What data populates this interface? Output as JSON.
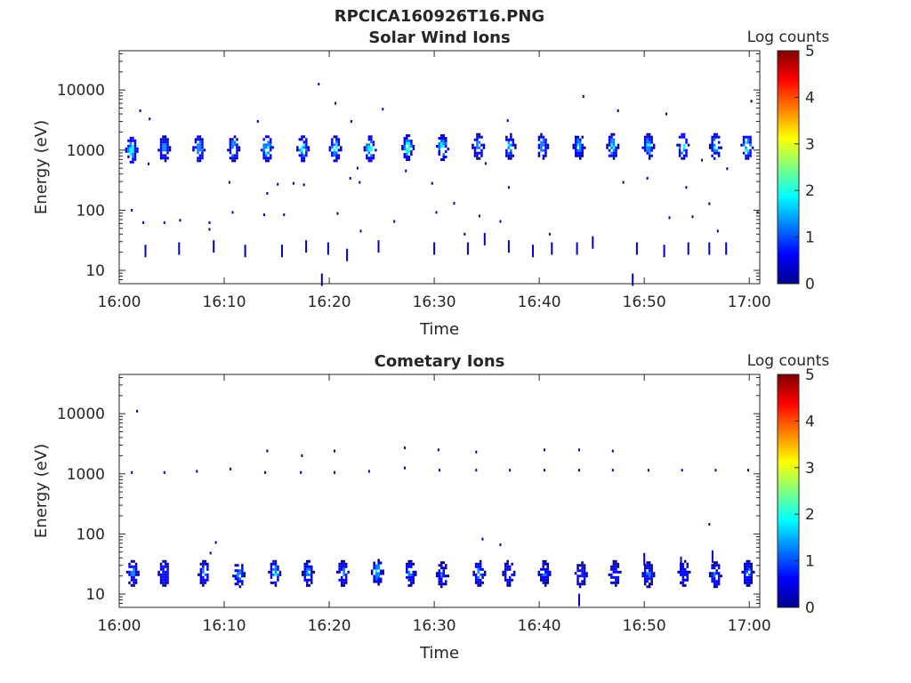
{
  "figure": {
    "filename_title": "RPCICA160926T16.PNG"
  },
  "colormap": [
    "#00008f",
    "#0000ff",
    "#0080ff",
    "#00ffff",
    "#80ff80",
    "#ffff00",
    "#ff8000",
    "#ff0000",
    "#800000"
  ],
  "chart_data": [
    {
      "type": "heatmap",
      "title": "Solar Wind Ions",
      "xlabel": "Time",
      "ylabel": "Energy (eV)",
      "colorbar_label": "Log counts",
      "colorbar_range": [
        0,
        5
      ],
      "colorbar_ticks": [
        "0",
        "1",
        "2",
        "3",
        "4",
        "5"
      ],
      "y_scale": "log",
      "ylim": [
        6,
        45000
      ],
      "y_ticks": [
        {
          "value": 10,
          "label": "10"
        },
        {
          "value": 100,
          "label": "100"
        },
        {
          "value": 1000,
          "label": "1000"
        },
        {
          "value": 10000,
          "label": "10000"
        }
      ],
      "xlim_minutes": [
        0,
        61
      ],
      "x_ticks": [
        {
          "minute": 0,
          "label": "16:00"
        },
        {
          "minute": 10,
          "label": "16:10"
        },
        {
          "minute": 20,
          "label": "16:20"
        },
        {
          "minute": 30,
          "label": "16:30"
        },
        {
          "minute": 40,
          "label": "16:40"
        },
        {
          "minute": 50,
          "label": "16:50"
        },
        {
          "minute": 60,
          "label": "17:00"
        }
      ],
      "bursts": [
        {
          "t": 1.2,
          "e": 1000,
          "peak": 2.7
        },
        {
          "t": 4.3,
          "e": 1050,
          "peak": 2.0
        },
        {
          "t": 7.6,
          "e": 1050,
          "peak": 2.3
        },
        {
          "t": 10.9,
          "e": 1050,
          "peak": 2.2
        },
        {
          "t": 14.1,
          "e": 1050,
          "peak": 2.8
        },
        {
          "t": 17.5,
          "e": 1050,
          "peak": 2.6
        },
        {
          "t": 20.6,
          "e": 1050,
          "peak": 2.6
        },
        {
          "t": 23.9,
          "e": 1050,
          "peak": 2.8
        },
        {
          "t": 27.5,
          "e": 1100,
          "peak": 2.9
        },
        {
          "t": 30.8,
          "e": 1100,
          "peak": 2.8
        },
        {
          "t": 34.2,
          "e": 1150,
          "peak": 2.0
        },
        {
          "t": 37.2,
          "e": 1150,
          "peak": 2.1
        },
        {
          "t": 40.3,
          "e": 1150,
          "peak": 2.1
        },
        {
          "t": 43.8,
          "e": 1150,
          "peak": 2.1
        },
        {
          "t": 47.0,
          "e": 1150,
          "peak": 2.3
        },
        {
          "t": 50.4,
          "e": 1150,
          "peak": 2.2
        },
        {
          "t": 53.7,
          "e": 1150,
          "peak": 2.3
        },
        {
          "t": 56.8,
          "e": 1150,
          "peak": 2.4
        },
        {
          "t": 59.8,
          "e": 1150,
          "peak": 2.7
        }
      ],
      "low_energy_marks": [
        {
          "t": 2.5,
          "e": 21
        },
        {
          "t": 5.7,
          "e": 23
        },
        {
          "t": 9.0,
          "e": 25
        },
        {
          "t": 12.0,
          "e": 21
        },
        {
          "t": 15.5,
          "e": 21
        },
        {
          "t": 17.8,
          "e": 25
        },
        {
          "t": 19.9,
          "e": 23
        },
        {
          "t": 21.7,
          "e": 18
        },
        {
          "t": 24.7,
          "e": 25
        },
        {
          "t": 30.0,
          "e": 23
        },
        {
          "t": 33.2,
          "e": 23
        },
        {
          "t": 34.8,
          "e": 33
        },
        {
          "t": 37.1,
          "e": 25
        },
        {
          "t": 39.4,
          "e": 21
        },
        {
          "t": 41.2,
          "e": 23
        },
        {
          "t": 43.6,
          "e": 23
        },
        {
          "t": 45.1,
          "e": 29
        },
        {
          "t": 49.3,
          "e": 23
        },
        {
          "t": 51.9,
          "e": 21
        },
        {
          "t": 54.2,
          "e": 23
        },
        {
          "t": 56.2,
          "e": 23
        },
        {
          "t": 57.8,
          "e": 23
        },
        {
          "t": 48.9,
          "e": 7
        },
        {
          "t": 19.3,
          "e": 7
        }
      ],
      "scatter_points": [
        {
          "t": 1.2,
          "e": 100
        },
        {
          "t": 2.3,
          "e": 62
        },
        {
          "t": 4.3,
          "e": 62
        },
        {
          "t": 5.8,
          "e": 68
        },
        {
          "t": 8.6,
          "e": 48
        },
        {
          "t": 8.6,
          "e": 62
        },
        {
          "t": 10.8,
          "e": 92
        },
        {
          "t": 13.8,
          "e": 84
        },
        {
          "t": 15.7,
          "e": 84
        },
        {
          "t": 17.6,
          "e": 265
        },
        {
          "t": 20.8,
          "e": 88
        },
        {
          "t": 23.0,
          "e": 45
        },
        {
          "t": 26.2,
          "e": 65
        },
        {
          "t": 30.2,
          "e": 92
        },
        {
          "t": 32.9,
          "e": 40
        },
        {
          "t": 34.3,
          "e": 80
        },
        {
          "t": 36.3,
          "e": 65
        },
        {
          "t": 41.0,
          "e": 40
        },
        {
          "t": 52.4,
          "e": 75
        },
        {
          "t": 54.6,
          "e": 78
        },
        {
          "t": 56.2,
          "e": 128
        },
        {
          "t": 57.0,
          "e": 45
        },
        {
          "t": 60.8,
          "e": 92
        },
        {
          "t": 2.0,
          "e": 4500
        },
        {
          "t": 2.9,
          "e": 3300
        },
        {
          "t": 19.0,
          "e": 12500
        },
        {
          "t": 20.6,
          "e": 6000
        },
        {
          "t": 25.1,
          "e": 4800
        },
        {
          "t": 44.2,
          "e": 7800
        },
        {
          "t": 47.5,
          "e": 4500
        },
        {
          "t": 52.1,
          "e": 4000
        },
        {
          "t": 60.2,
          "e": 6500
        },
        {
          "t": 13.2,
          "e": 3000
        },
        {
          "t": 22.1,
          "e": 3000
        },
        {
          "t": 37.0,
          "e": 3100
        },
        {
          "t": 2.8,
          "e": 590
        },
        {
          "t": 10.5,
          "e": 290
        },
        {
          "t": 14.1,
          "e": 190
        },
        {
          "t": 15.1,
          "e": 270
        },
        {
          "t": 16.6,
          "e": 280
        },
        {
          "t": 22.0,
          "e": 340
        },
        {
          "t": 22.9,
          "e": 290
        },
        {
          "t": 27.3,
          "e": 450
        },
        {
          "t": 29.8,
          "e": 280
        },
        {
          "t": 37.1,
          "e": 240
        },
        {
          "t": 48.0,
          "e": 290
        },
        {
          "t": 50.3,
          "e": 340
        },
        {
          "t": 55.5,
          "e": 680
        },
        {
          "t": 57.9,
          "e": 490
        },
        {
          "t": 54.0,
          "e": 240
        },
        {
          "t": 31.9,
          "e": 130
        },
        {
          "t": 22.7,
          "e": 500
        },
        {
          "t": 34.9,
          "e": 600
        }
      ]
    },
    {
      "type": "heatmap",
      "title": "Cometary Ions",
      "xlabel": "Time",
      "ylabel": "Energy (eV)",
      "colorbar_label": "Log counts",
      "colorbar_range": [
        0,
        5
      ],
      "colorbar_ticks": [
        "0",
        "1",
        "2",
        "3",
        "4",
        "5"
      ],
      "y_scale": "log",
      "ylim": [
        6,
        45000
      ],
      "y_ticks": [
        {
          "value": 10,
          "label": "10"
        },
        {
          "value": 100,
          "label": "100"
        },
        {
          "value": 1000,
          "label": "1000"
        },
        {
          "value": 10000,
          "label": "10000"
        }
      ],
      "xlim_minutes": [
        0,
        61
      ],
      "x_ticks": [
        {
          "minute": 0,
          "label": "16:00"
        },
        {
          "minute": 10,
          "label": "16:10"
        },
        {
          "minute": 20,
          "label": "16:20"
        },
        {
          "minute": 30,
          "label": "16:30"
        },
        {
          "minute": 40,
          "label": "16:40"
        },
        {
          "minute": 50,
          "label": "16:50"
        },
        {
          "minute": 60,
          "label": "17:00"
        }
      ],
      "bursts": [
        {
          "t": 1.3,
          "e": 22,
          "peak": 1.7
        },
        {
          "t": 4.3,
          "e": 22,
          "peak": 1.3
        },
        {
          "t": 8.1,
          "e": 22,
          "peak": 1.8
        },
        {
          "t": 11.4,
          "e": 21,
          "peak": 1.8
        },
        {
          "t": 14.8,
          "e": 22,
          "peak": 2.3
        },
        {
          "t": 18.0,
          "e": 22,
          "peak": 2.0
        },
        {
          "t": 21.3,
          "e": 22,
          "peak": 1.8
        },
        {
          "t": 24.6,
          "e": 23,
          "peak": 2.1
        },
        {
          "t": 27.7,
          "e": 22,
          "peak": 1.6
        },
        {
          "t": 30.8,
          "e": 21,
          "peak": 1.5
        },
        {
          "t": 34.3,
          "e": 22,
          "peak": 1.6
        },
        {
          "t": 37.1,
          "e": 22,
          "peak": 1.4
        },
        {
          "t": 40.5,
          "e": 22,
          "peak": 1.3
        },
        {
          "t": 44.0,
          "e": 21,
          "peak": 1.2
        },
        {
          "t": 47.2,
          "e": 22,
          "peak": 1.3
        },
        {
          "t": 50.4,
          "e": 21,
          "peak": 1.3
        },
        {
          "t": 53.8,
          "e": 22,
          "peak": 1.5
        },
        {
          "t": 56.8,
          "e": 21,
          "peak": 1.4
        },
        {
          "t": 59.9,
          "e": 22,
          "peak": 1.5
        }
      ],
      "low_energy_marks": [
        {
          "t": 43.8,
          "e": 8
        },
        {
          "t": 50.0,
          "e": 38
        },
        {
          "t": 56.5,
          "e": 42
        },
        {
          "t": 53.5,
          "e": 33
        }
      ],
      "scatter_points": [
        {
          "t": 1.2,
          "e": 1050
        },
        {
          "t": 4.3,
          "e": 1050
        },
        {
          "t": 7.4,
          "e": 1100
        },
        {
          "t": 10.6,
          "e": 1200
        },
        {
          "t": 13.9,
          "e": 1050
        },
        {
          "t": 17.3,
          "e": 1050
        },
        {
          "t": 20.5,
          "e": 1050
        },
        {
          "t": 23.8,
          "e": 1100
        },
        {
          "t": 27.2,
          "e": 1250
        },
        {
          "t": 30.5,
          "e": 1150
        },
        {
          "t": 34.0,
          "e": 1150
        },
        {
          "t": 37.2,
          "e": 1150
        },
        {
          "t": 40.5,
          "e": 1150
        },
        {
          "t": 43.8,
          "e": 1150
        },
        {
          "t": 47.0,
          "e": 1150
        },
        {
          "t": 50.4,
          "e": 1150
        },
        {
          "t": 53.6,
          "e": 1150
        },
        {
          "t": 56.8,
          "e": 1150
        },
        {
          "t": 59.9,
          "e": 1150
        },
        {
          "t": 1.7,
          "e": 11000
        },
        {
          "t": 9.2,
          "e": 72
        },
        {
          "t": 8.7,
          "e": 48
        },
        {
          "t": 14.1,
          "e": 2400
        },
        {
          "t": 17.4,
          "e": 2000
        },
        {
          "t": 20.5,
          "e": 2400
        },
        {
          "t": 27.2,
          "e": 2700
        },
        {
          "t": 30.4,
          "e": 2500
        },
        {
          "t": 34.0,
          "e": 2300
        },
        {
          "t": 40.5,
          "e": 2500
        },
        {
          "t": 43.8,
          "e": 2500
        },
        {
          "t": 47.0,
          "e": 2400
        },
        {
          "t": 34.6,
          "e": 82
        },
        {
          "t": 36.3,
          "e": 66
        },
        {
          "t": 56.2,
          "e": 145
        }
      ]
    }
  ]
}
